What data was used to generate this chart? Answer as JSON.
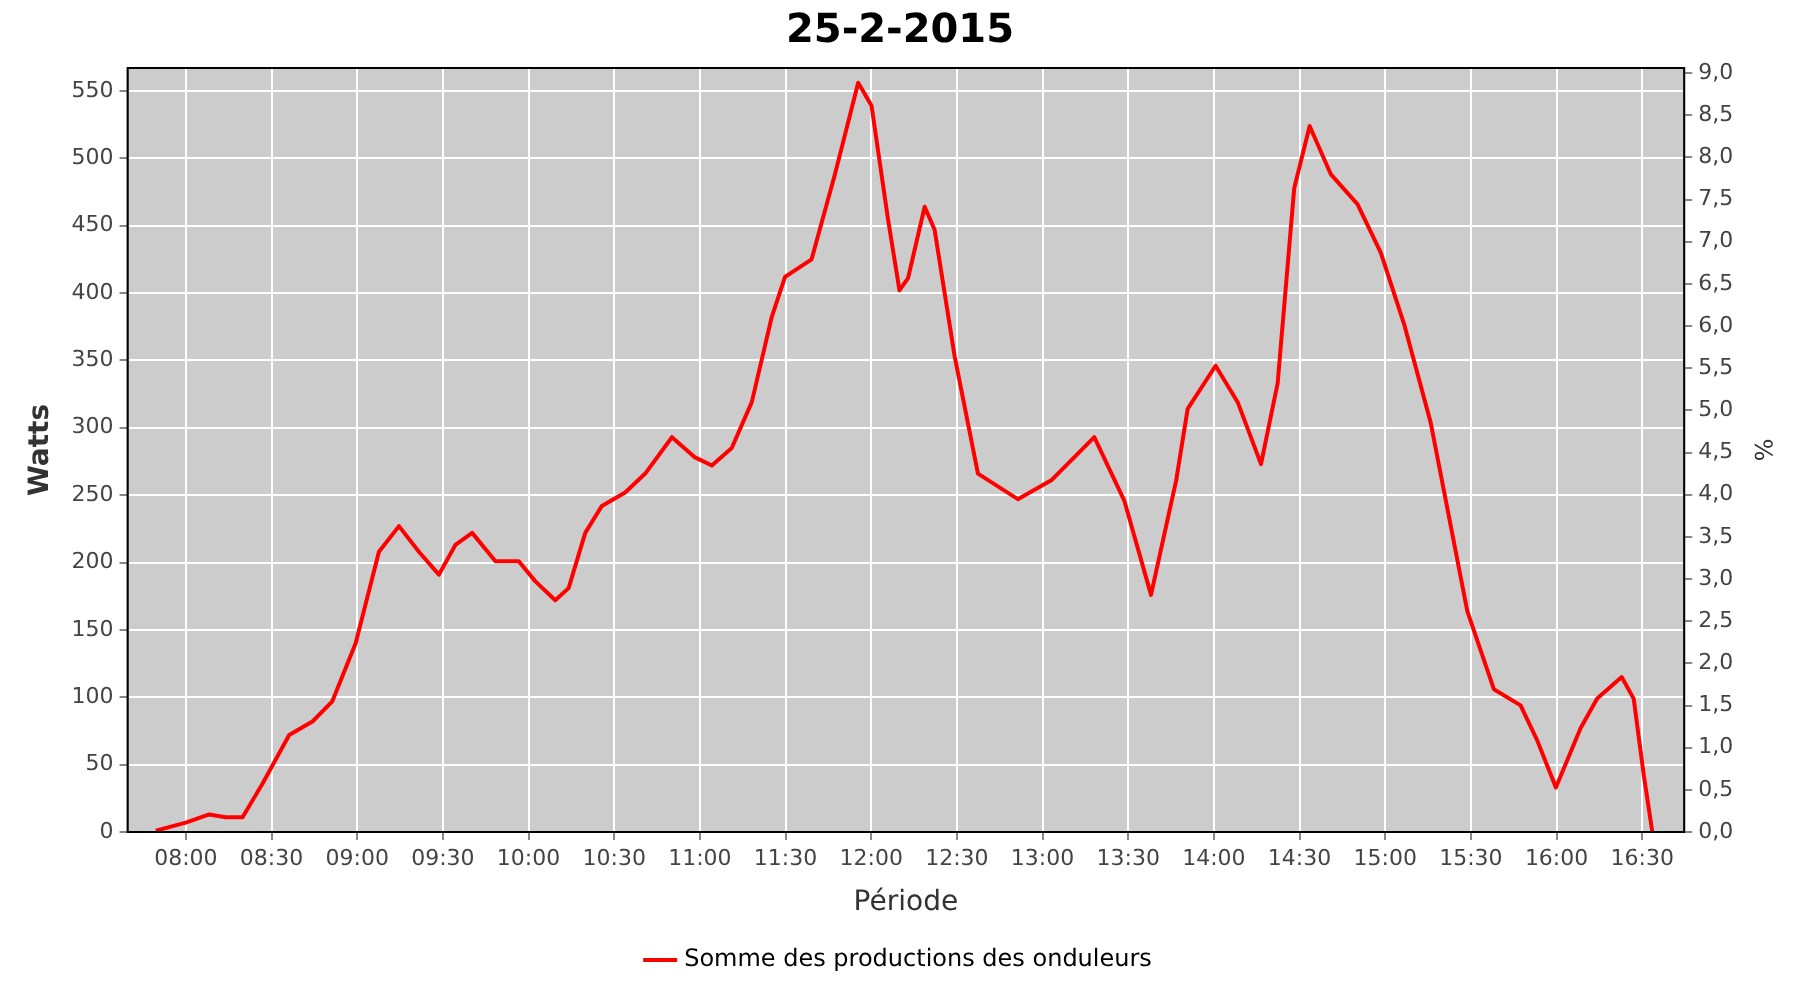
{
  "chart_data": {
    "type": "line",
    "title": "25-2-2015",
    "xlabel": "Période",
    "ylabel": "Watts",
    "y2label": "%",
    "x": [
      7.825,
      8.0,
      8.136,
      8.233,
      8.331,
      8.448,
      8.603,
      8.739,
      8.855,
      8.991,
      9.127,
      9.244,
      9.36,
      9.477,
      9.573,
      9.671,
      9.807,
      9.943,
      10.04,
      10.156,
      10.234,
      10.331,
      10.428,
      10.564,
      10.681,
      10.837,
      10.972,
      11.07,
      11.186,
      11.303,
      11.419,
      11.497,
      11.652,
      11.788,
      11.924,
      12.002,
      12.099,
      12.165,
      12.215,
      12.312,
      12.37,
      12.487,
      12.623,
      12.856,
      13.051,
      13.302,
      13.477,
      13.633,
      13.78,
      13.847,
      14.01,
      14.139,
      14.275,
      14.372,
      14.469,
      14.559,
      14.683,
      14.838,
      14.974,
      15.11,
      15.265,
      15.479,
      15.634,
      15.79,
      15.887,
      15.996,
      16.14,
      16.237,
      16.38,
      16.45,
      16.508,
      16.559
    ],
    "series": [
      {
        "name": "Somme des productions des onduleurs",
        "color": "#ff0000",
        "values": [
          1,
          7,
          13,
          11,
          11,
          36,
          72,
          82,
          97,
          140,
          208,
          227,
          208,
          191,
          213,
          222,
          201,
          201,
          186,
          172,
          181,
          222,
          242,
          252,
          266,
          293,
          278,
          272,
          285,
          319,
          382,
          412,
          425,
          488,
          556,
          539,
          454,
          402,
          411,
          464,
          447,
          353,
          266,
          247,
          261,
          293,
          246,
          176,
          261,
          314,
          346,
          319,
          273,
          333,
          478,
          524,
          488,
          466,
          430,
          377,
          304,
          164,
          106,
          94,
          68,
          33,
          77,
          99,
          115,
          99,
          43,
          0
        ]
      }
    ],
    "xlim": [
      7.66,
      16.745
    ],
    "xticks": [
      {
        "value": 8,
        "label": "08:00"
      },
      {
        "value": 8.5,
        "label": "08:30"
      },
      {
        "value": 9,
        "label": "09:00"
      },
      {
        "value": 9.5,
        "label": "09:30"
      },
      {
        "value": 10,
        "label": "10:00"
      },
      {
        "value": 10.5,
        "label": "10:30"
      },
      {
        "value": 11,
        "label": "11:00"
      },
      {
        "value": 11.5,
        "label": "11:30"
      },
      {
        "value": 12,
        "label": "12:00"
      },
      {
        "value": 12.5,
        "label": "12:30"
      },
      {
        "value": 13,
        "label": "13:00"
      },
      {
        "value": 13.5,
        "label": "13:30"
      },
      {
        "value": 14,
        "label": "14:00"
      },
      {
        "value": 14.5,
        "label": "14:30"
      },
      {
        "value": 15,
        "label": "15:00"
      },
      {
        "value": 15.5,
        "label": "15:30"
      },
      {
        "value": 16,
        "label": "16:00"
      },
      {
        "value": 16.5,
        "label": "16:30"
      }
    ],
    "ylim": [
      0,
      567
    ],
    "yticks": [
      0,
      50,
      100,
      150,
      200,
      250,
      300,
      350,
      400,
      450,
      500,
      550
    ],
    "y2lim": [
      0,
      9.06
    ],
    "y2ticks": [
      {
        "value": 0,
        "label": "0,0"
      },
      {
        "value": 0.5,
        "label": "0,5"
      },
      {
        "value": 1,
        "label": "1,0"
      },
      {
        "value": 1.5,
        "label": "1,5"
      },
      {
        "value": 2,
        "label": "2,0"
      },
      {
        "value": 2.5,
        "label": "2,5"
      },
      {
        "value": 3,
        "label": "3,0"
      },
      {
        "value": 3.5,
        "label": "3,5"
      },
      {
        "value": 4,
        "label": "4,0"
      },
      {
        "value": 4.5,
        "label": "4,5"
      },
      {
        "value": 5,
        "label": "5,0"
      },
      {
        "value": 5.5,
        "label": "5,5"
      },
      {
        "value": 6,
        "label": "6,0"
      },
      {
        "value": 6.5,
        "label": "6,5"
      },
      {
        "value": 7,
        "label": "7,0"
      },
      {
        "value": 7.5,
        "label": "7,5"
      },
      {
        "value": 8,
        "label": "8,0"
      },
      {
        "value": 8.5,
        "label": "8,5"
      },
      {
        "value": 9,
        "label": "9,0"
      }
    ],
    "grid": true,
    "legend": "bottom",
    "marker": "none",
    "line_style": "solid"
  }
}
